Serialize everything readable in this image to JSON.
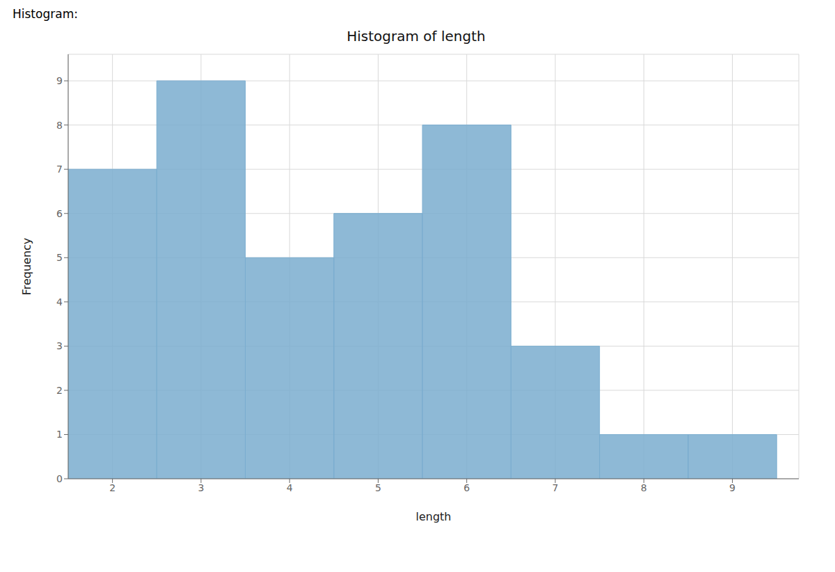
{
  "chart_data": {
    "type": "histogram",
    "title": "Histogram of length",
    "annotations": [
      "Histogram:"
    ],
    "xlabel": "length",
    "ylabel": "Frequency",
    "bins": [
      1.5,
      2.5,
      3.5,
      4.5,
      5.5,
      6.5,
      7.5,
      8.5,
      9.5
    ],
    "values": [
      7,
      9,
      5,
      6,
      8,
      3,
      1,
      1
    ],
    "color": "#7aadcf",
    "xlim": [
      1.5,
      9.75
    ],
    "xticks": [
      2,
      3,
      4,
      5,
      6,
      7,
      8,
      9
    ],
    "ylim": [
      0,
      9.6
    ],
    "yticks": [
      0,
      1,
      2,
      3,
      4,
      5,
      6,
      7,
      8,
      9
    ],
    "grid": true
  }
}
